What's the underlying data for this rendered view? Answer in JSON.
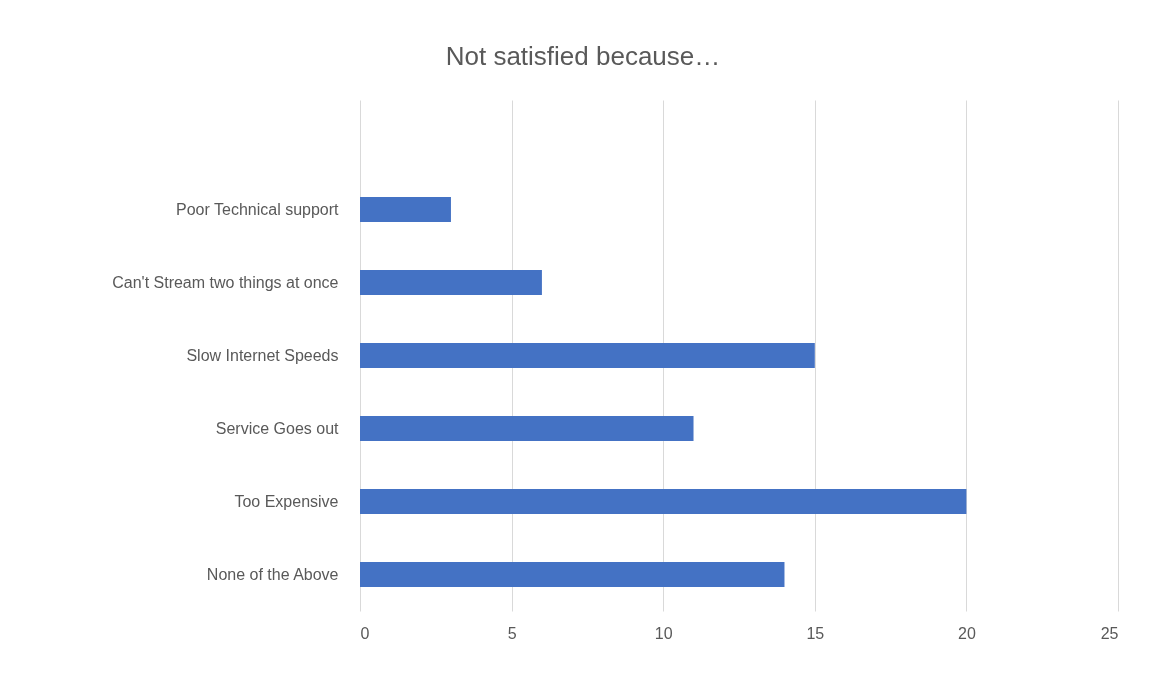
{
  "chart_data": {
    "type": "bar",
    "orientation": "horizontal",
    "title": "Not satisfied because…",
    "categories": [
      null,
      "Poor Technical support",
      "Can't Stream two things at once",
      "Slow Internet Speeds",
      "Service Goes out",
      "Too Expensive",
      "None of the Above"
    ],
    "values": [
      null,
      3,
      6,
      15,
      11,
      20,
      14
    ],
    "color": "#4472c4",
    "xlim": [
      0,
      25
    ],
    "xticks": [
      0,
      5,
      10,
      15,
      20,
      25
    ],
    "grid": "x"
  }
}
